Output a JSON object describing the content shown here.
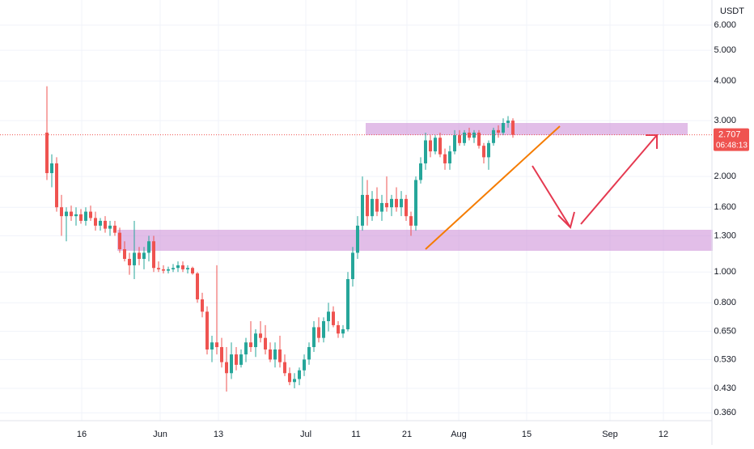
{
  "chart_data": {
    "type": "candlestick",
    "currency": "USDT",
    "countdown": "06:48:13",
    "log_scale": true,
    "grid": true,
    "up_color": "#26a69a",
    "down_color": "#ef5350",
    "ylim": [
      0.34,
      7.2
    ],
    "yticks": [
      {
        "value": 6,
        "label": "6.000"
      },
      {
        "value": 5,
        "label": "5.000"
      },
      {
        "value": 4,
        "label": "4.000"
      },
      {
        "value": 3,
        "label": "3.000"
      },
      {
        "value": 2,
        "label": "2.000"
      },
      {
        "value": 1.6,
        "label": "1.600"
      },
      {
        "value": 1.3,
        "label": "1.300"
      },
      {
        "value": 1,
        "label": "1.000"
      },
      {
        "value": 0.8,
        "label": "0.800"
      },
      {
        "value": 0.65,
        "label": "0.650"
      },
      {
        "value": 0.53,
        "label": "0.530"
      },
      {
        "value": 0.43,
        "label": "0.430"
      },
      {
        "value": 0.36,
        "label": "0.360"
      }
    ],
    "xtick_labels": [
      "16",
      "Jun",
      "13",
      "Jul",
      "11",
      "21",
      "Aug",
      "15",
      "Sep",
      "12"
    ],
    "candles": [
      [
        2.75,
        3.85,
        1.95,
        2.05
      ],
      [
        2.05,
        2.35,
        1.85,
        2.2
      ],
      [
        2.2,
        2.3,
        1.55,
        1.6
      ],
      [
        1.6,
        1.75,
        1.3,
        1.5
      ],
      [
        1.5,
        1.6,
        1.25,
        1.55
      ],
      [
        1.55,
        1.62,
        1.45,
        1.5
      ],
      [
        1.5,
        1.6,
        1.4,
        1.52
      ],
      [
        1.52,
        1.58,
        1.42,
        1.45
      ],
      [
        1.45,
        1.6,
        1.4,
        1.55
      ],
      [
        1.55,
        1.62,
        1.45,
        1.48
      ],
      [
        1.48,
        1.55,
        1.35,
        1.4
      ],
      [
        1.4,
        1.48,
        1.35,
        1.45
      ],
      [
        1.45,
        1.5,
        1.33,
        1.37
      ],
      [
        1.37,
        1.45,
        1.3,
        1.4
      ],
      [
        1.4,
        1.45,
        1.3,
        1.33
      ],
      [
        1.33,
        1.38,
        1.15,
        1.18
      ],
      [
        1.18,
        1.25,
        1.08,
        1.1
      ],
      [
        1.1,
        1.15,
        0.98,
        1.05
      ],
      [
        1.05,
        1.45,
        0.95,
        1.15
      ],
      [
        1.15,
        1.2,
        1.05,
        1.1
      ],
      [
        1.1,
        1.2,
        1.02,
        1.15
      ],
      [
        1.15,
        1.3,
        1.08,
        1.25
      ],
      [
        1.25,
        1.3,
        1.0,
        1.03
      ],
      [
        1.03,
        1.08,
        1.0,
        1.02
      ],
      [
        1.02,
        1.05,
        0.99,
        1.01
      ],
      [
        1.01,
        1.04,
        0.99,
        1.02
      ],
      [
        1.02,
        1.06,
        1.0,
        1.03
      ],
      [
        1.03,
        1.08,
        1.0,
        1.05
      ],
      [
        1.05,
        1.08,
        1.0,
        1.02
      ],
      [
        1.02,
        1.05,
        0.99,
        1.03
      ],
      [
        1.03,
        1.04,
        0.98,
        0.99
      ],
      [
        0.99,
        1.0,
        0.8,
        0.82
      ],
      [
        0.82,
        0.86,
        0.72,
        0.75
      ],
      [
        0.75,
        0.78,
        0.55,
        0.57
      ],
      [
        0.57,
        0.63,
        0.52,
        0.6
      ],
      [
        0.6,
        1.05,
        0.55,
        0.58
      ],
      [
        0.58,
        0.62,
        0.5,
        0.52
      ],
      [
        0.52,
        0.58,
        0.42,
        0.48
      ],
      [
        0.48,
        0.6,
        0.46,
        0.55
      ],
      [
        0.55,
        0.58,
        0.49,
        0.51
      ],
      [
        0.51,
        0.57,
        0.5,
        0.55
      ],
      [
        0.55,
        0.62,
        0.52,
        0.6
      ],
      [
        0.6,
        0.7,
        0.56,
        0.58
      ],
      [
        0.58,
        0.66,
        0.54,
        0.64
      ],
      [
        0.64,
        0.7,
        0.6,
        0.62
      ],
      [
        0.62,
        0.68,
        0.55,
        0.57
      ],
      [
        0.57,
        0.6,
        0.52,
        0.53
      ],
      [
        0.53,
        0.6,
        0.5,
        0.57
      ],
      [
        0.57,
        0.63,
        0.5,
        0.52
      ],
      [
        0.52,
        0.55,
        0.47,
        0.48
      ],
      [
        0.48,
        0.5,
        0.44,
        0.45
      ],
      [
        0.45,
        0.48,
        0.43,
        0.46
      ],
      [
        0.46,
        0.5,
        0.44,
        0.49
      ],
      [
        0.49,
        0.55,
        0.47,
        0.53
      ],
      [
        0.53,
        0.6,
        0.51,
        0.58
      ],
      [
        0.58,
        0.7,
        0.56,
        0.67
      ],
      [
        0.67,
        0.72,
        0.6,
        0.62
      ],
      [
        0.62,
        0.72,
        0.6,
        0.7
      ],
      [
        0.7,
        0.8,
        0.65,
        0.75
      ],
      [
        0.75,
        0.78,
        0.67,
        0.68
      ],
      [
        0.68,
        0.7,
        0.62,
        0.64
      ],
      [
        0.64,
        0.68,
        0.62,
        0.66
      ],
      [
        0.66,
        1.0,
        0.65,
        0.95
      ],
      [
        0.95,
        1.2,
        0.9,
        1.15
      ],
      [
        1.15,
        1.5,
        1.1,
        1.4
      ],
      [
        1.4,
        2.0,
        1.35,
        1.75
      ],
      [
        1.75,
        1.95,
        1.4,
        1.5
      ],
      [
        1.5,
        1.8,
        1.45,
        1.7
      ],
      [
        1.7,
        1.85,
        1.5,
        1.55
      ],
      [
        1.55,
        1.75,
        1.45,
        1.65
      ],
      [
        1.65,
        2.0,
        1.55,
        1.6
      ],
      [
        1.6,
        1.75,
        1.5,
        1.7
      ],
      [
        1.7,
        1.85,
        1.55,
        1.6
      ],
      [
        1.6,
        1.8,
        1.5,
        1.7
      ],
      [
        1.7,
        1.75,
        1.45,
        1.5
      ],
      [
        1.5,
        1.55,
        1.3,
        1.4
      ],
      [
        1.4,
        2.0,
        1.35,
        1.95
      ],
      [
        1.95,
        2.3,
        1.9,
        2.2
      ],
      [
        2.2,
        2.75,
        2.1,
        2.6
      ],
      [
        2.6,
        2.7,
        2.3,
        2.4
      ],
      [
        2.4,
        2.7,
        2.35,
        2.65
      ],
      [
        2.65,
        2.75,
        2.3,
        2.35
      ],
      [
        2.35,
        2.45,
        2.1,
        2.2
      ],
      [
        2.2,
        2.5,
        2.1,
        2.4
      ],
      [
        2.4,
        2.8,
        2.35,
        2.7
      ],
      [
        2.7,
        2.8,
        2.5,
        2.55
      ],
      [
        2.55,
        2.8,
        2.5,
        2.75
      ],
      [
        2.75,
        2.85,
        2.6,
        2.65
      ],
      [
        2.65,
        2.8,
        2.55,
        2.75
      ],
      [
        2.75,
        2.8,
        2.45,
        2.5
      ],
      [
        2.5,
        2.55,
        2.2,
        2.3
      ],
      [
        2.3,
        2.6,
        2.1,
        2.55
      ],
      [
        2.55,
        2.85,
        2.5,
        2.8
      ],
      [
        2.8,
        2.9,
        2.65,
        2.75
      ],
      [
        2.75,
        3.05,
        2.7,
        2.95
      ],
      [
        2.95,
        3.1,
        2.85,
        3.0
      ],
      [
        3.0,
        3.05,
        2.65,
        2.707
      ]
    ]
  }
}
